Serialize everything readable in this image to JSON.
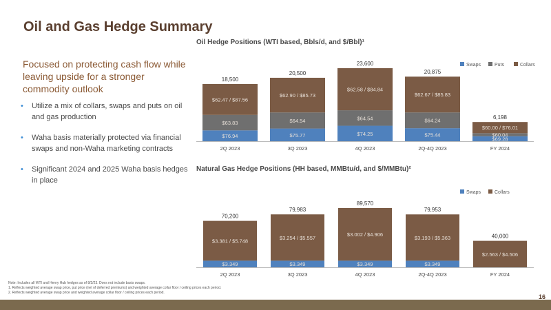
{
  "page": {
    "title": "Oil and Gas Hedge Summary",
    "subtitle": "Focused on protecting cash flow while leaving upside for a stronger commodity outlook",
    "bullets": [
      "Utilize a mix of collars, swaps and puts on oil and gas production",
      "Waha basis materially protected via financial swaps and non-Waha marketing contracts",
      "Significant 2024 and 2025 Waha basis hedges in place"
    ],
    "footnotes": [
      "Note: Includes all WTI and Henry Hub hedges as of 8/2/23. Does not include basis swaps.",
      "1.      Reflects weighted average swap price, put price (net of deferred premiums) and weighted average collar floor / ceiling prices each period.",
      "2.      Reflects weighted average swap price and weighted average collar floor / ceiling prices each period."
    ],
    "page_number": "16"
  },
  "colors": {
    "swaps": "#4f81bd",
    "puts": "#6f6f6f",
    "collars": "#7b5b45",
    "bullet": "#3f8fd6"
  },
  "chart_data": [
    {
      "type": "bar",
      "stacked": true,
      "title": "Oil Hedge Positions (WTI based, Bbls/d, and $/Bbl)¹",
      "categories": [
        "2Q 2023",
        "3Q 2023",
        "4Q 2023",
        "2Q-4Q 2023",
        "FY 2024"
      ],
      "totals": [
        "18,500",
        "20,500",
        "23,600",
        "20,875",
        "6,198"
      ],
      "total_values": [
        18500,
        20500,
        23600,
        20875,
        6198
      ],
      "series": [
        {
          "name": "Swaps",
          "values": [
            3500,
            4100,
            5000,
            4200,
            1600
          ],
          "labels": [
            "$76.94",
            "$75.77",
            "$74.25",
            "$75.44",
            "$69.28"
          ]
        },
        {
          "name": "Puts",
          "values": [
            5000,
            5200,
            5000,
            5100,
            1000
          ],
          "labels": [
            "$63.83",
            "$64.54",
            "$64.54",
            "$64.24",
            "$60.04"
          ]
        },
        {
          "name": "Collars",
          "values": [
            10000,
            11200,
            13600,
            11575,
            3598
          ],
          "labels": [
            "$62.47 / $87.56",
            "$62.90 / $85.73",
            "$62.58 / $84.84",
            "$62.67 / $85.83",
            "$60.00 / $76.01"
          ]
        }
      ],
      "legend": [
        "Swaps",
        "Puts",
        "Collars"
      ],
      "legend_position": "top-right",
      "ylim": [
        0,
        23600
      ],
      "grid": false
    },
    {
      "type": "bar",
      "stacked": true,
      "title": "Natural Gas Hedge Positions (HH based, MMBtu/d, and $/MMBtu)²",
      "categories": [
        "2Q 2023",
        "3Q 2023",
        "4Q 2023",
        "2Q-4Q 2023",
        "FY 2024"
      ],
      "totals": [
        "70,200",
        "79,983",
        "89,570",
        "79,953",
        "40,000"
      ],
      "total_values": [
        70200,
        79983,
        89570,
        79953,
        40000
      ],
      "series": [
        {
          "name": "Swaps",
          "values": [
            10000,
            10000,
            10000,
            10000,
            0
          ],
          "labels": [
            "$3.349",
            "$3.349",
            "$3.349",
            "$3.349",
            ""
          ]
        },
        {
          "name": "Collars",
          "values": [
            60200,
            69983,
            79570,
            69953,
            40000
          ],
          "labels": [
            "$3.381 / $5.748",
            "$3.254 / $5.557",
            "$3.002 / $4.906",
            "$3.193 / $5.363",
            "$2.563 / $4.506"
          ]
        }
      ],
      "legend": [
        "Swaps",
        "Collars"
      ],
      "legend_position": "top-right",
      "ylim": [
        0,
        89570
      ],
      "grid": false
    }
  ]
}
